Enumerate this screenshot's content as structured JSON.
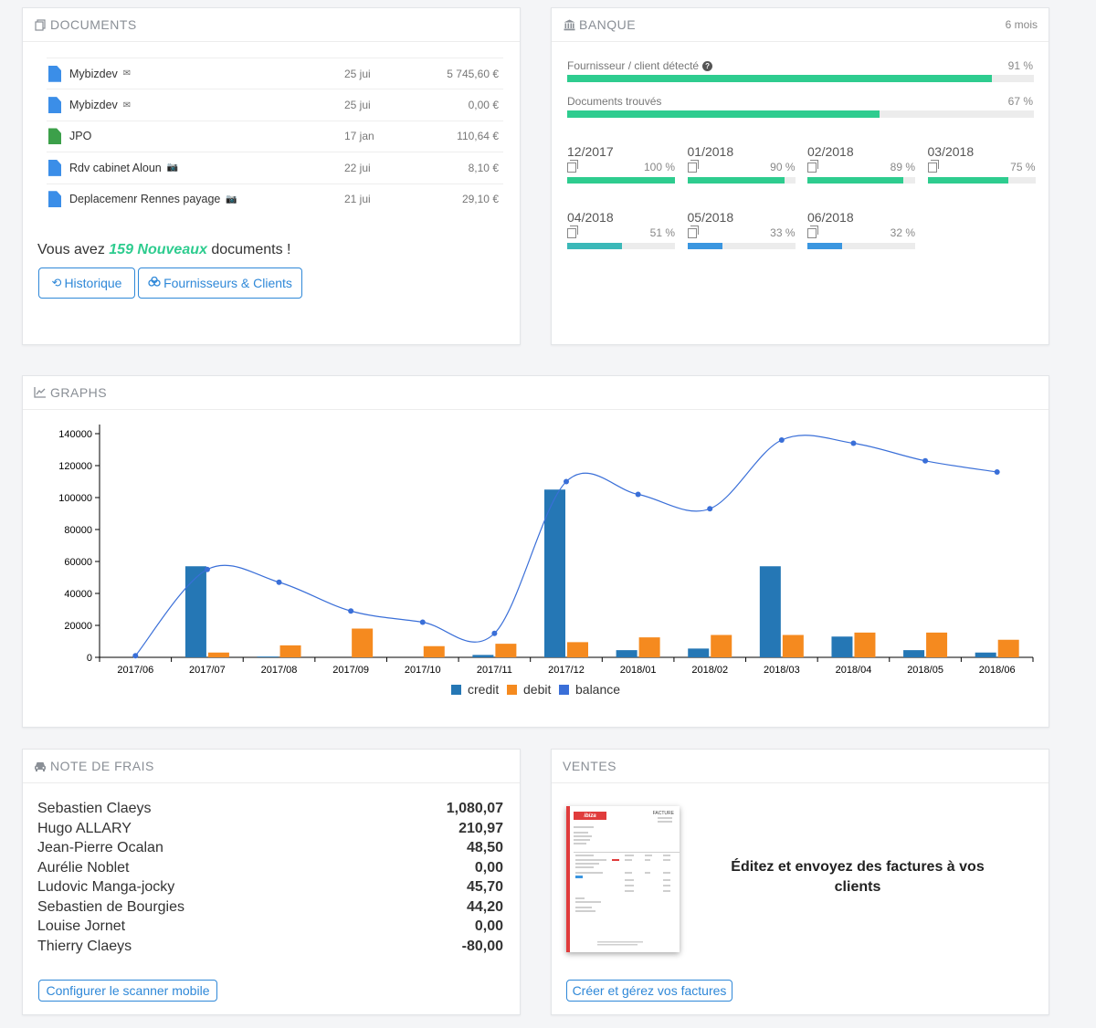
{
  "colors": {
    "accent": "#2f88d8",
    "green": "#2ecc8f",
    "teal": "#3bb8b8",
    "blue": "#3a96e0",
    "file_blue": "#3b8ee8",
    "file_green": "#3ca04a",
    "credit": "#2577b5",
    "debit": "#f58a1f",
    "balance": "#3a6fd8"
  },
  "documents": {
    "title": "DOCUMENTS",
    "icon": "documents-icon",
    "rows": [
      {
        "name": "Mybizdev",
        "tag_icon": "envelope-icon",
        "date": "25 jui",
        "amount": "5 745,60 €",
        "color": "blue"
      },
      {
        "name": "Mybizdev",
        "tag_icon": "envelope-icon",
        "date": "25 jui",
        "amount": "0,00 €",
        "color": "blue"
      },
      {
        "name": "JPO",
        "tag_icon": "",
        "date": "17 jan",
        "amount": "110,64 €",
        "color": "green"
      },
      {
        "name": "Rdv cabinet Aloun",
        "tag_icon": "camera-icon",
        "date": "22 jui",
        "amount": "8,10 €",
        "color": "blue"
      },
      {
        "name": "Deplacemenr Rennes payage",
        "tag_icon": "camera-icon",
        "date": "21 jui",
        "amount": "29,10 €",
        "color": "blue"
      }
    ],
    "message_prefix": "Vous avez ",
    "message_highlight": "159 Nouveaux",
    "message_suffix": " documents !",
    "btn_history": "Historique",
    "btn_suppliers": "Fournisseurs & Clients"
  },
  "banque": {
    "title": "BANQUE",
    "period": "6 mois",
    "detect_label": "Fournisseur / client détecté",
    "detect_pct": "91 %",
    "detect_value": 91,
    "docs_label": "Documents trouvés",
    "docs_pct": "67 %",
    "docs_value": 67,
    "months": [
      {
        "name": "12/2017",
        "pct": "100 %",
        "value": 100,
        "color": "green"
      },
      {
        "name": "01/2018",
        "pct": "90 %",
        "value": 90,
        "color": "green"
      },
      {
        "name": "02/2018",
        "pct": "89 %",
        "value": 89,
        "color": "green"
      },
      {
        "name": "03/2018",
        "pct": "75 %",
        "value": 75,
        "color": "green"
      },
      {
        "name": "04/2018",
        "pct": "51 %",
        "value": 51,
        "color": "teal"
      },
      {
        "name": "05/2018",
        "pct": "33 %",
        "value": 33,
        "color": "blue"
      },
      {
        "name": "06/2018",
        "pct": "32 %",
        "value": 32,
        "color": "blue"
      }
    ]
  },
  "graphs": {
    "title": "GRAPHS"
  },
  "chart_data": {
    "type": "bar",
    "categories": [
      "2017/06",
      "2017/07",
      "2017/08",
      "2017/09",
      "2017/10",
      "2017/11",
      "2017/12",
      "2018/01",
      "2018/02",
      "2018/03",
      "2018/04",
      "2018/05",
      "2018/06"
    ],
    "series": [
      {
        "name": "credit",
        "type": "bar",
        "values": [
          0,
          57000,
          500,
          0,
          0,
          1500,
          105000,
          4500,
          5500,
          57000,
          13000,
          4500,
          3000
        ]
      },
      {
        "name": "debit",
        "type": "bar",
        "values": [
          0,
          3000,
          7500,
          18000,
          7000,
          8500,
          9500,
          12500,
          14000,
          14000,
          15500,
          15500,
          11000
        ]
      },
      {
        "name": "balance",
        "type": "line",
        "values": [
          1000,
          55000,
          47000,
          29000,
          22000,
          15000,
          110000,
          102000,
          93000,
          136000,
          134000,
          123000,
          116000
        ]
      }
    ],
    "yticks": [
      0,
      20000,
      40000,
      60000,
      80000,
      100000,
      120000,
      140000
    ],
    "ylim": [
      0,
      140000
    ],
    "legend": "bottom"
  },
  "note_de_frais": {
    "title": "NOTE DE FRAIS",
    "rows": [
      {
        "name": "Sebastien Claeys",
        "value": "1,080,07"
      },
      {
        "name": "Hugo ALLARY",
        "value": "210,97"
      },
      {
        "name": "Jean-Pierre Ocalan",
        "value": "48,50"
      },
      {
        "name": "Aurélie Noblet",
        "value": "0,00"
      },
      {
        "name": "Ludovic Manga-jocky",
        "value": "45,70"
      },
      {
        "name": "Sebastien de Bourgies",
        "value": "44,20"
      },
      {
        "name": "Louise Jornet",
        "value": "0,00"
      },
      {
        "name": "Thierry Claeys",
        "value": "-80,00"
      }
    ],
    "button": "Configurer le scanner mobile"
  },
  "ventes": {
    "title": "VENTES",
    "text": "Éditez et envoyez des factures à vos clients",
    "button": "Créer et gérez vos factures",
    "invoice_logo": "ibiza",
    "invoice_heading": "FACTURE"
  }
}
